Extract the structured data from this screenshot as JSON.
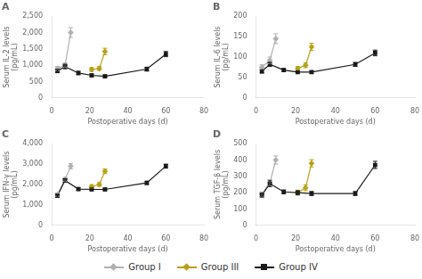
{
  "chart_data": [
    {
      "type": "line",
      "title": "A",
      "x_label": "Postoperative days (d)",
      "y_label": "Serum IL-2 levels\n(pg/mL)",
      "xlim": [
        0,
        80
      ],
      "xticks": [
        0,
        20,
        40,
        60,
        80
      ],
      "ylim": [
        0,
        2500
      ],
      "yticks": [
        0,
        500,
        1000,
        1500,
        2000,
        2500
      ],
      "grid": false,
      "legend": "bottom",
      "series": [
        {
          "name": "Group I",
          "color": "#b0b0b0",
          "marker": "diamond",
          "x": [
            3,
            7,
            10
          ],
          "values": [
            900,
            1000,
            2000
          ],
          "yerr": [
            60,
            70,
            150
          ]
        },
        {
          "name": "Group III",
          "color": "#b8a014",
          "marker": "diamond",
          "x": [
            21,
            25,
            28
          ],
          "values": [
            870,
            900,
            1420
          ],
          "yerr": [
            60,
            60,
            100
          ]
        },
        {
          "name": "Group IV",
          "color": "#1a1a1a",
          "marker": "square",
          "x": [
            3,
            7,
            14,
            21,
            28,
            50,
            60
          ],
          "values": [
            820,
            960,
            760,
            690,
            660,
            880,
            1340
          ],
          "yerr": [
            50,
            70,
            50,
            40,
            40,
            60,
            80
          ]
        }
      ]
    },
    {
      "type": "line",
      "title": "B",
      "x_label": "Postoperative days (d)",
      "y_label": "Serum IL-6 levels\n(pg/mL)",
      "xlim": [
        0,
        80
      ],
      "xticks": [
        0,
        20,
        40,
        60,
        80
      ],
      "ylim": [
        0,
        200
      ],
      "yticks": [
        0,
        50,
        100,
        150,
        200
      ],
      "grid": false,
      "legend": "bottom",
      "series": [
        {
          "name": "Group I",
          "color": "#b0b0b0",
          "marker": "diamond",
          "x": [
            3,
            7,
            10
          ],
          "values": [
            75,
            92,
            145
          ],
          "yerr": [
            6,
            8,
            12
          ]
        },
        {
          "name": "Group III",
          "color": "#b8a014",
          "marker": "diamond",
          "x": [
            21,
            25,
            28
          ],
          "values": [
            72,
            80,
            125
          ],
          "yerr": [
            5,
            6,
            9
          ]
        },
        {
          "name": "Group IV",
          "color": "#1a1a1a",
          "marker": "square",
          "x": [
            3,
            7,
            14,
            21,
            28,
            50,
            60
          ],
          "values": [
            65,
            82,
            68,
            63,
            63,
            82,
            110
          ],
          "yerr": [
            4,
            5,
            4,
            3,
            3,
            5,
            7
          ]
        }
      ]
    },
    {
      "type": "line",
      "title": "C",
      "x_label": "Postoperative days (d)",
      "y_label": "Serum IFN-γ levels\n(pg/mL)",
      "xlim": [
        0,
        80
      ],
      "xticks": [
        0,
        20,
        40,
        60,
        80
      ],
      "ylim": [
        0,
        4000
      ],
      "yticks": [
        0,
        1000,
        2000,
        3000,
        4000
      ],
      "grid": false,
      "legend": "bottom",
      "series": [
        {
          "name": "Group I",
          "color": "#b0b0b0",
          "marker": "diamond",
          "x": [
            3,
            7,
            10
          ],
          "values": [
            1500,
            2250,
            2900
          ],
          "yerr": [
            80,
            100,
            130
          ]
        },
        {
          "name": "Group III",
          "color": "#b8a014",
          "marker": "diamond",
          "x": [
            21,
            25,
            28
          ],
          "values": [
            1900,
            2000,
            2650
          ],
          "yerr": [
            90,
            90,
            110
          ]
        },
        {
          "name": "Group IV",
          "color": "#1a1a1a",
          "marker": "square",
          "x": [
            3,
            7,
            14,
            21,
            28,
            50,
            60
          ],
          "values": [
            1450,
            2200,
            1780,
            1760,
            1760,
            2080,
            2900
          ],
          "yerr": [
            70,
            90,
            70,
            60,
            60,
            80,
            100
          ]
        }
      ]
    },
    {
      "type": "line",
      "title": "D",
      "x_label": "Postoperative days (d)",
      "y_label": "Serum TGF-β levels\n(pg/mL)",
      "xlim": [
        0,
        80
      ],
      "xticks": [
        0,
        20,
        40,
        60,
        80
      ],
      "ylim": [
        0,
        500
      ],
      "yticks": [
        0,
        100,
        200,
        300,
        400,
        500
      ],
      "grid": false,
      "legend": "bottom",
      "series": [
        {
          "name": "Group I",
          "color": "#b0b0b0",
          "marker": "diamond",
          "x": [
            3,
            7,
            10
          ],
          "values": [
            190,
            260,
            400
          ],
          "yerr": [
            15,
            20,
            25
          ]
        },
        {
          "name": "Group III",
          "color": "#b8a014",
          "marker": "diamond",
          "x": [
            21,
            25,
            28
          ],
          "values": [
            200,
            230,
            380
          ],
          "yerr": [
            15,
            18,
            22
          ]
        },
        {
          "name": "Group IV",
          "color": "#1a1a1a",
          "marker": "square",
          "x": [
            3,
            7,
            14,
            21,
            28,
            50,
            60
          ],
          "values": [
            185,
            255,
            205,
            200,
            195,
            195,
            370
          ],
          "yerr": [
            12,
            18,
            12,
            12,
            12,
            12,
            22
          ]
        }
      ]
    }
  ]
}
